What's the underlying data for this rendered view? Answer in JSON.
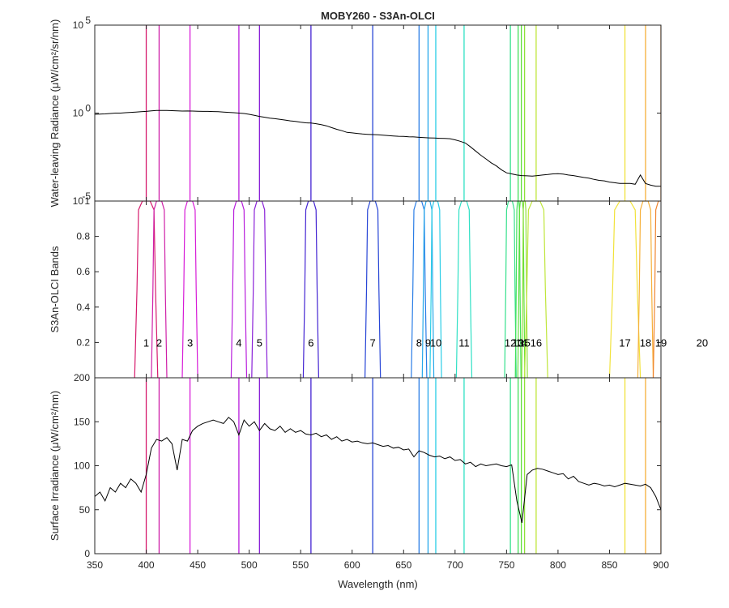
{
  "chart_data": {
    "type": "line",
    "title": "MOBY260 - S3An-OLCI",
    "xlabel": "Wavelength (nm)",
    "xlim": [
      350,
      900
    ],
    "xticks": [
      350,
      400,
      450,
      500,
      550,
      600,
      650,
      700,
      750,
      800,
      850,
      900
    ],
    "bands": [
      {
        "label": "1",
        "center": 400,
        "width": 15,
        "color": "#d6196c"
      },
      {
        "label": "2",
        "center": 412.5,
        "width": 10,
        "color": "#cf20a8"
      },
      {
        "label": "3",
        "center": 442.5,
        "width": 10,
        "color": "#d71bd7"
      },
      {
        "label": "4",
        "center": 490,
        "width": 10,
        "color": "#b81ddc"
      },
      {
        "label": "5",
        "center": 510,
        "width": 10,
        "color": "#8a20d8"
      },
      {
        "label": "6",
        "center": 560,
        "width": 10,
        "color": "#4324d2"
      },
      {
        "label": "7",
        "center": 620,
        "width": 10,
        "color": "#2745d6"
      },
      {
        "label": "8",
        "center": 665,
        "width": 10,
        "color": "#2a7de6"
      },
      {
        "label": "9",
        "center": 673.75,
        "width": 7.5,
        "color": "#25a8ea"
      },
      {
        "label": "10",
        "center": 681.25,
        "width": 7.5,
        "color": "#29cde6"
      },
      {
        "label": "11",
        "center": 708.75,
        "width": 10,
        "color": "#2ee0c4"
      },
      {
        "label": "12",
        "center": 753.75,
        "width": 7.5,
        "color": "#35e08c"
      },
      {
        "label": "13",
        "center": 761.25,
        "width": 2.5,
        "color": "#43e05a"
      },
      {
        "label": "14",
        "center": 764.375,
        "width": 3.75,
        "color": "#5fe03c"
      },
      {
        "label": "15",
        "center": 767.5,
        "width": 2.5,
        "color": "#8ee03a"
      },
      {
        "label": "16",
        "center": 778.75,
        "width": 15,
        "color": "#bfe63a"
      },
      {
        "label": "17",
        "center": 865,
        "width": 20,
        "color": "#f1e23a"
      },
      {
        "label": "18",
        "center": 885,
        "width": 10,
        "color": "#f6b03a"
      },
      {
        "label": "19",
        "center": 900,
        "width": 10,
        "color": "#f0842e"
      },
      {
        "label": "20",
        "center": 940,
        "width": 20,
        "color": "#e85a28"
      }
    ],
    "panels": [
      {
        "ylabel": "Water-leaving Radiance (μW/cm²/sr/nm)",
        "yscale": "log",
        "ylim_exp": [
          -5,
          5
        ],
        "ytick_exponents": [
          -5,
          0,
          5
        ],
        "series": [
          {
            "x": [
              350,
              355,
              360,
              365,
              370,
              375,
              380,
              385,
              390,
              395,
              400,
              405,
              410,
              415,
              420,
              425,
              430,
              435,
              440,
              445,
              450,
              455,
              460,
              465,
              470,
              475,
              480,
              485,
              490,
              495,
              500,
              505,
              510,
              515,
              520,
              525,
              530,
              535,
              540,
              545,
              550,
              555,
              560,
              565,
              570,
              575,
              580,
              585,
              590,
              595,
              600,
              605,
              610,
              615,
              620,
              625,
              630,
              635,
              640,
              645,
              650,
              655,
              660,
              665,
              670,
              675,
              680,
              685,
              690,
              695,
              700,
              705,
              710,
              715,
              720,
              725,
              730,
              735,
              740,
              745,
              750,
              755,
              760,
              765,
              770,
              775,
              780,
              785,
              790,
              795,
              800,
              805,
              810,
              815,
              820,
              825,
              830,
              835,
              840,
              845,
              850,
              855,
              860,
              865,
              870,
              875,
              880,
              885,
              890,
              895,
              900
            ],
            "y": [
              0.85,
              0.88,
              0.9,
              0.95,
              1.0,
              1.0,
              1.05,
              1.1,
              1.15,
              1.2,
              1.25,
              1.35,
              1.4,
              1.42,
              1.4,
              1.38,
              1.35,
              1.3,
              1.32,
              1.3,
              1.28,
              1.25,
              1.25,
              1.22,
              1.2,
              1.15,
              1.1,
              1.05,
              1.0,
              0.95,
              0.85,
              0.75,
              0.65,
              0.58,
              0.52,
              0.48,
              0.44,
              0.4,
              0.36,
              0.34,
              0.3,
              0.28,
              0.27,
              0.25,
              0.22,
              0.19,
              0.15,
              0.12,
              0.1,
              0.08,
              0.075,
              0.07,
              0.065,
              0.062,
              0.06,
              0.058,
              0.055,
              0.053,
              0.05,
              0.048,
              0.047,
              0.045,
              0.044,
              0.042,
              0.04,
              0.039,
              0.038,
              0.037,
              0.036,
              0.035,
              0.03,
              0.025,
              0.02,
              0.012,
              0.007,
              0.004,
              0.0025,
              0.0015,
              0.001,
              0.0006,
              0.0004,
              0.00035,
              0.0003,
              0.00028,
              0.00027,
              0.00026,
              0.00028,
              0.0003,
              0.00032,
              0.00035,
              0.00036,
              0.00034,
              0.0003,
              0.00028,
              0.00025,
              0.00022,
              0.0002,
              0.00017,
              0.00015,
              0.00014,
              0.00012,
              0.00011,
              0.0001,
              0.0001,
              0.0001,
              9e-05,
              0.0003,
              0.0001,
              8e-05,
              7e-05,
              7e-05
            ]
          }
        ]
      },
      {
        "ylabel": "S3An-OLCI Bands",
        "yscale": "linear",
        "ylim": [
          0,
          1
        ],
        "yticks": [
          0.2,
          0.4,
          0.6,
          0.8,
          1
        ],
        "band_label_y": 0.2
      },
      {
        "ylabel": "Surface Irradiance (μW/cm²/nm)",
        "yscale": "linear",
        "ylim": [
          0,
          200
        ],
        "yticks": [
          0,
          50,
          100,
          150,
          200
        ],
        "series": [
          {
            "x": [
              350,
              355,
              360,
              365,
              370,
              375,
              380,
              385,
              390,
              395,
              400,
              405,
              410,
              415,
              420,
              425,
              430,
              435,
              440,
              445,
              450,
              455,
              460,
              465,
              470,
              475,
              480,
              485,
              490,
              495,
              500,
              505,
              510,
              515,
              520,
              525,
              530,
              535,
              540,
              545,
              550,
              555,
              560,
              565,
              570,
              575,
              580,
              585,
              590,
              595,
              600,
              605,
              610,
              615,
              620,
              625,
              630,
              635,
              640,
              645,
              650,
              655,
              660,
              665,
              670,
              675,
              680,
              685,
              690,
              695,
              700,
              705,
              710,
              715,
              720,
              725,
              730,
              735,
              740,
              745,
              750,
              755,
              760,
              765,
              770,
              775,
              780,
              785,
              790,
              795,
              800,
              805,
              810,
              815,
              820,
              825,
              830,
              835,
              840,
              845,
              850,
              855,
              860,
              865,
              870,
              875,
              880,
              885,
              890,
              895,
              900
            ],
            "y": [
              65,
              70,
              60,
              75,
              70,
              80,
              75,
              85,
              80,
              70,
              90,
              120,
              130,
              128,
              132,
              125,
              95,
              130,
              128,
              140,
              145,
              148,
              150,
              152,
              150,
              148,
              155,
              150,
              135,
              152,
              145,
              150,
              140,
              148,
              142,
              140,
              145,
              138,
              142,
              138,
              140,
              136,
              135,
              137,
              133,
              135,
              130,
              133,
              128,
              130,
              127,
              128,
              126,
              125,
              126,
              124,
              122,
              123,
              120,
              121,
              118,
              119,
              110,
              117,
              115,
              112,
              110,
              111,
              108,
              110,
              106,
              107,
              102,
              104,
              99,
              102,
              100,
              101,
              102,
              100,
              99,
              101,
              60,
              35,
              90,
              95,
              97,
              96,
              94,
              92,
              90,
              91,
              85,
              88,
              82,
              80,
              78,
              80,
              79,
              77,
              78,
              76,
              78,
              80,
              79,
              78,
              77,
              79,
              75,
              65,
              50
            ]
          }
        ]
      }
    ]
  }
}
